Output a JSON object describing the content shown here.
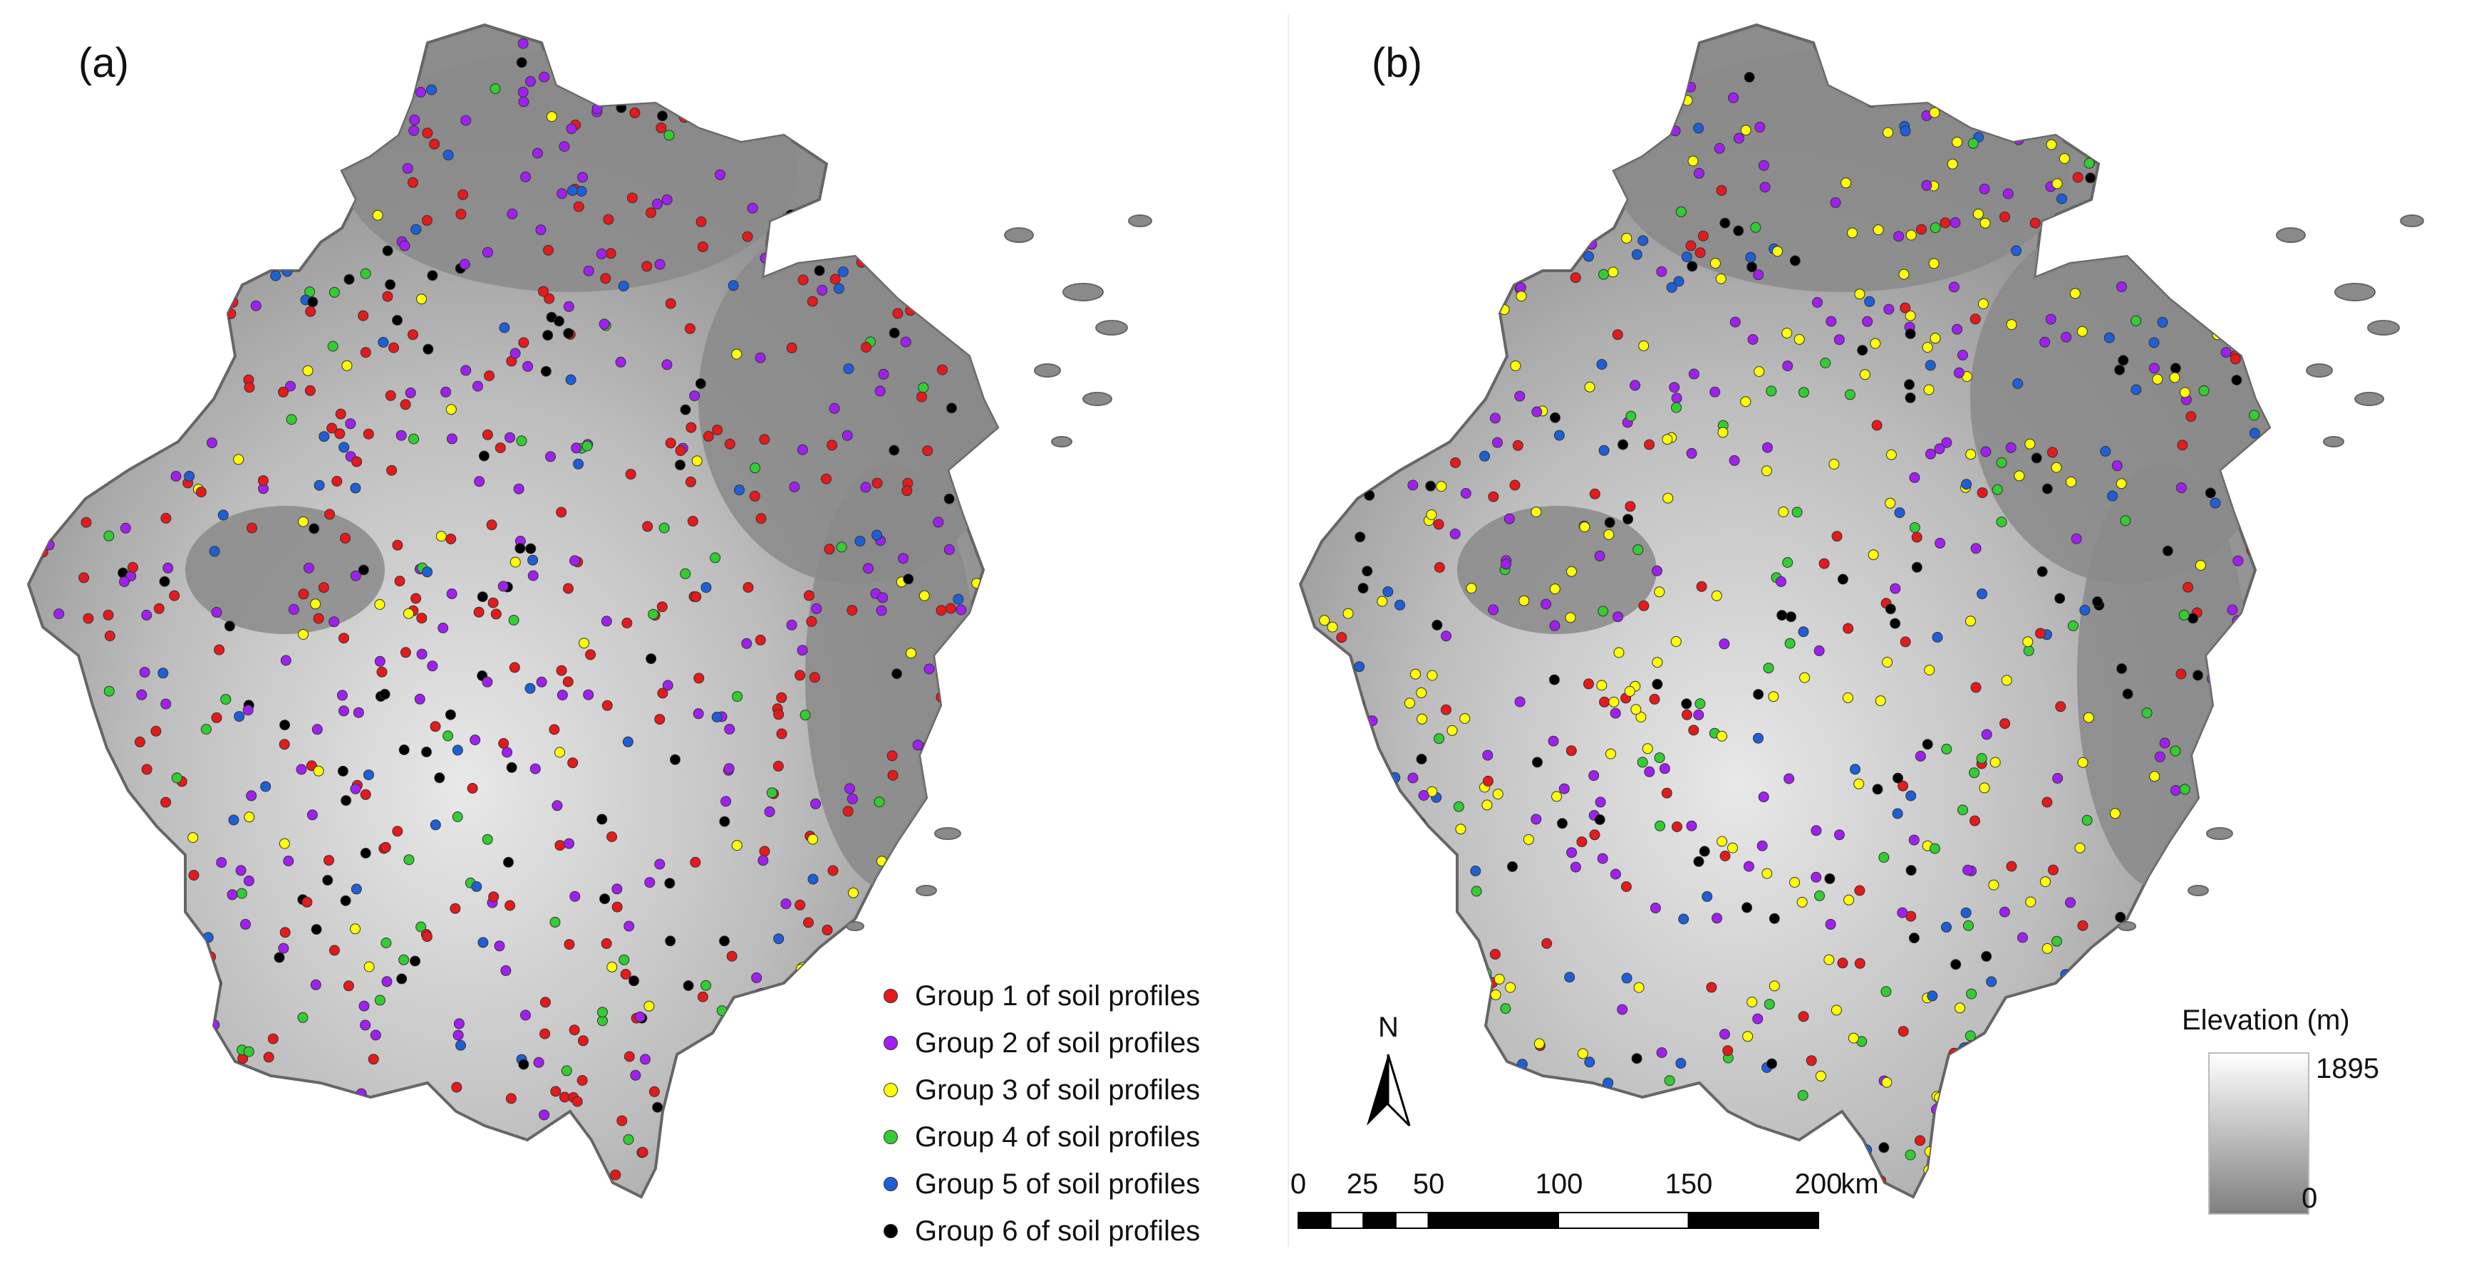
{
  "panels": [
    {
      "label": "(a)"
    },
    {
      "label": "(b)"
    }
  ],
  "legend": {
    "items": [
      {
        "label": "Group 1 of soil profiles",
        "color": "#e41a1c"
      },
      {
        "label": "Group 2 of soil profiles",
        "color": "#a020f0"
      },
      {
        "label": "Group 3 of soil profiles",
        "color": "#ffff00"
      },
      {
        "label": "Group 4 of soil profiles",
        "color": "#33cc33"
      },
      {
        "label": "Group 5 of soil profiles",
        "color": "#1f5fd6"
      },
      {
        "label": "Group 6 of soil profiles",
        "color": "#000000"
      }
    ]
  },
  "scale_bar": {
    "ticks": [
      "0",
      "25",
      "50",
      "100",
      "150",
      "200"
    ],
    "tick_values_km": [
      0,
      25,
      50,
      100,
      150,
      200
    ],
    "unit": "km"
  },
  "north_arrow": {
    "label": "N"
  },
  "elevation_legend": {
    "title": "Elevation (m)",
    "max": "1895",
    "min": "0"
  }
}
